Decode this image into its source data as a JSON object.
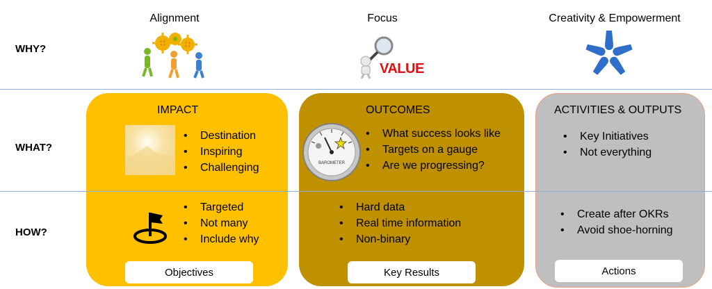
{
  "columns": [
    "Alignment",
    "Focus",
    "Creativity & Empowerment"
  ],
  "rows": [
    "WHY?",
    "WHAT?",
    "HOW?"
  ],
  "value_word": "VALUE",
  "panels": [
    {
      "title": "IMPACT",
      "what": [
        "Destination",
        "Inspiring",
        "Challenging"
      ],
      "how": [
        "Targeted",
        "Not many",
        "Include why"
      ],
      "tag": "Objectives",
      "color": "#FFC000"
    },
    {
      "title": "OUTCOMES",
      "what": [
        "What success looks like",
        "Targets on a gauge",
        "Are we progressing?"
      ],
      "how": [
        "Hard data",
        "Real time information",
        "Non-binary"
      ],
      "tag": "Key Results",
      "color": "#BF9000"
    },
    {
      "title": "ACTIVITIES & OUTPUTS",
      "what": [
        "Key Initiatives",
        "Not everything"
      ],
      "how": [
        "Create after OKRs",
        "Avoid shoe-horning"
      ],
      "tag": "Actions",
      "color": "#BFBFBF"
    }
  ],
  "barometer_label": "BAROMETER",
  "icons": {
    "alignment": "people-gears-icon",
    "focus": "magnifier-value-icon",
    "creativity": "hands-circle-icon",
    "impact": "sunrise-image-icon",
    "outcomes": "barometer-gauge-icon",
    "how": "flag-target-icon"
  }
}
